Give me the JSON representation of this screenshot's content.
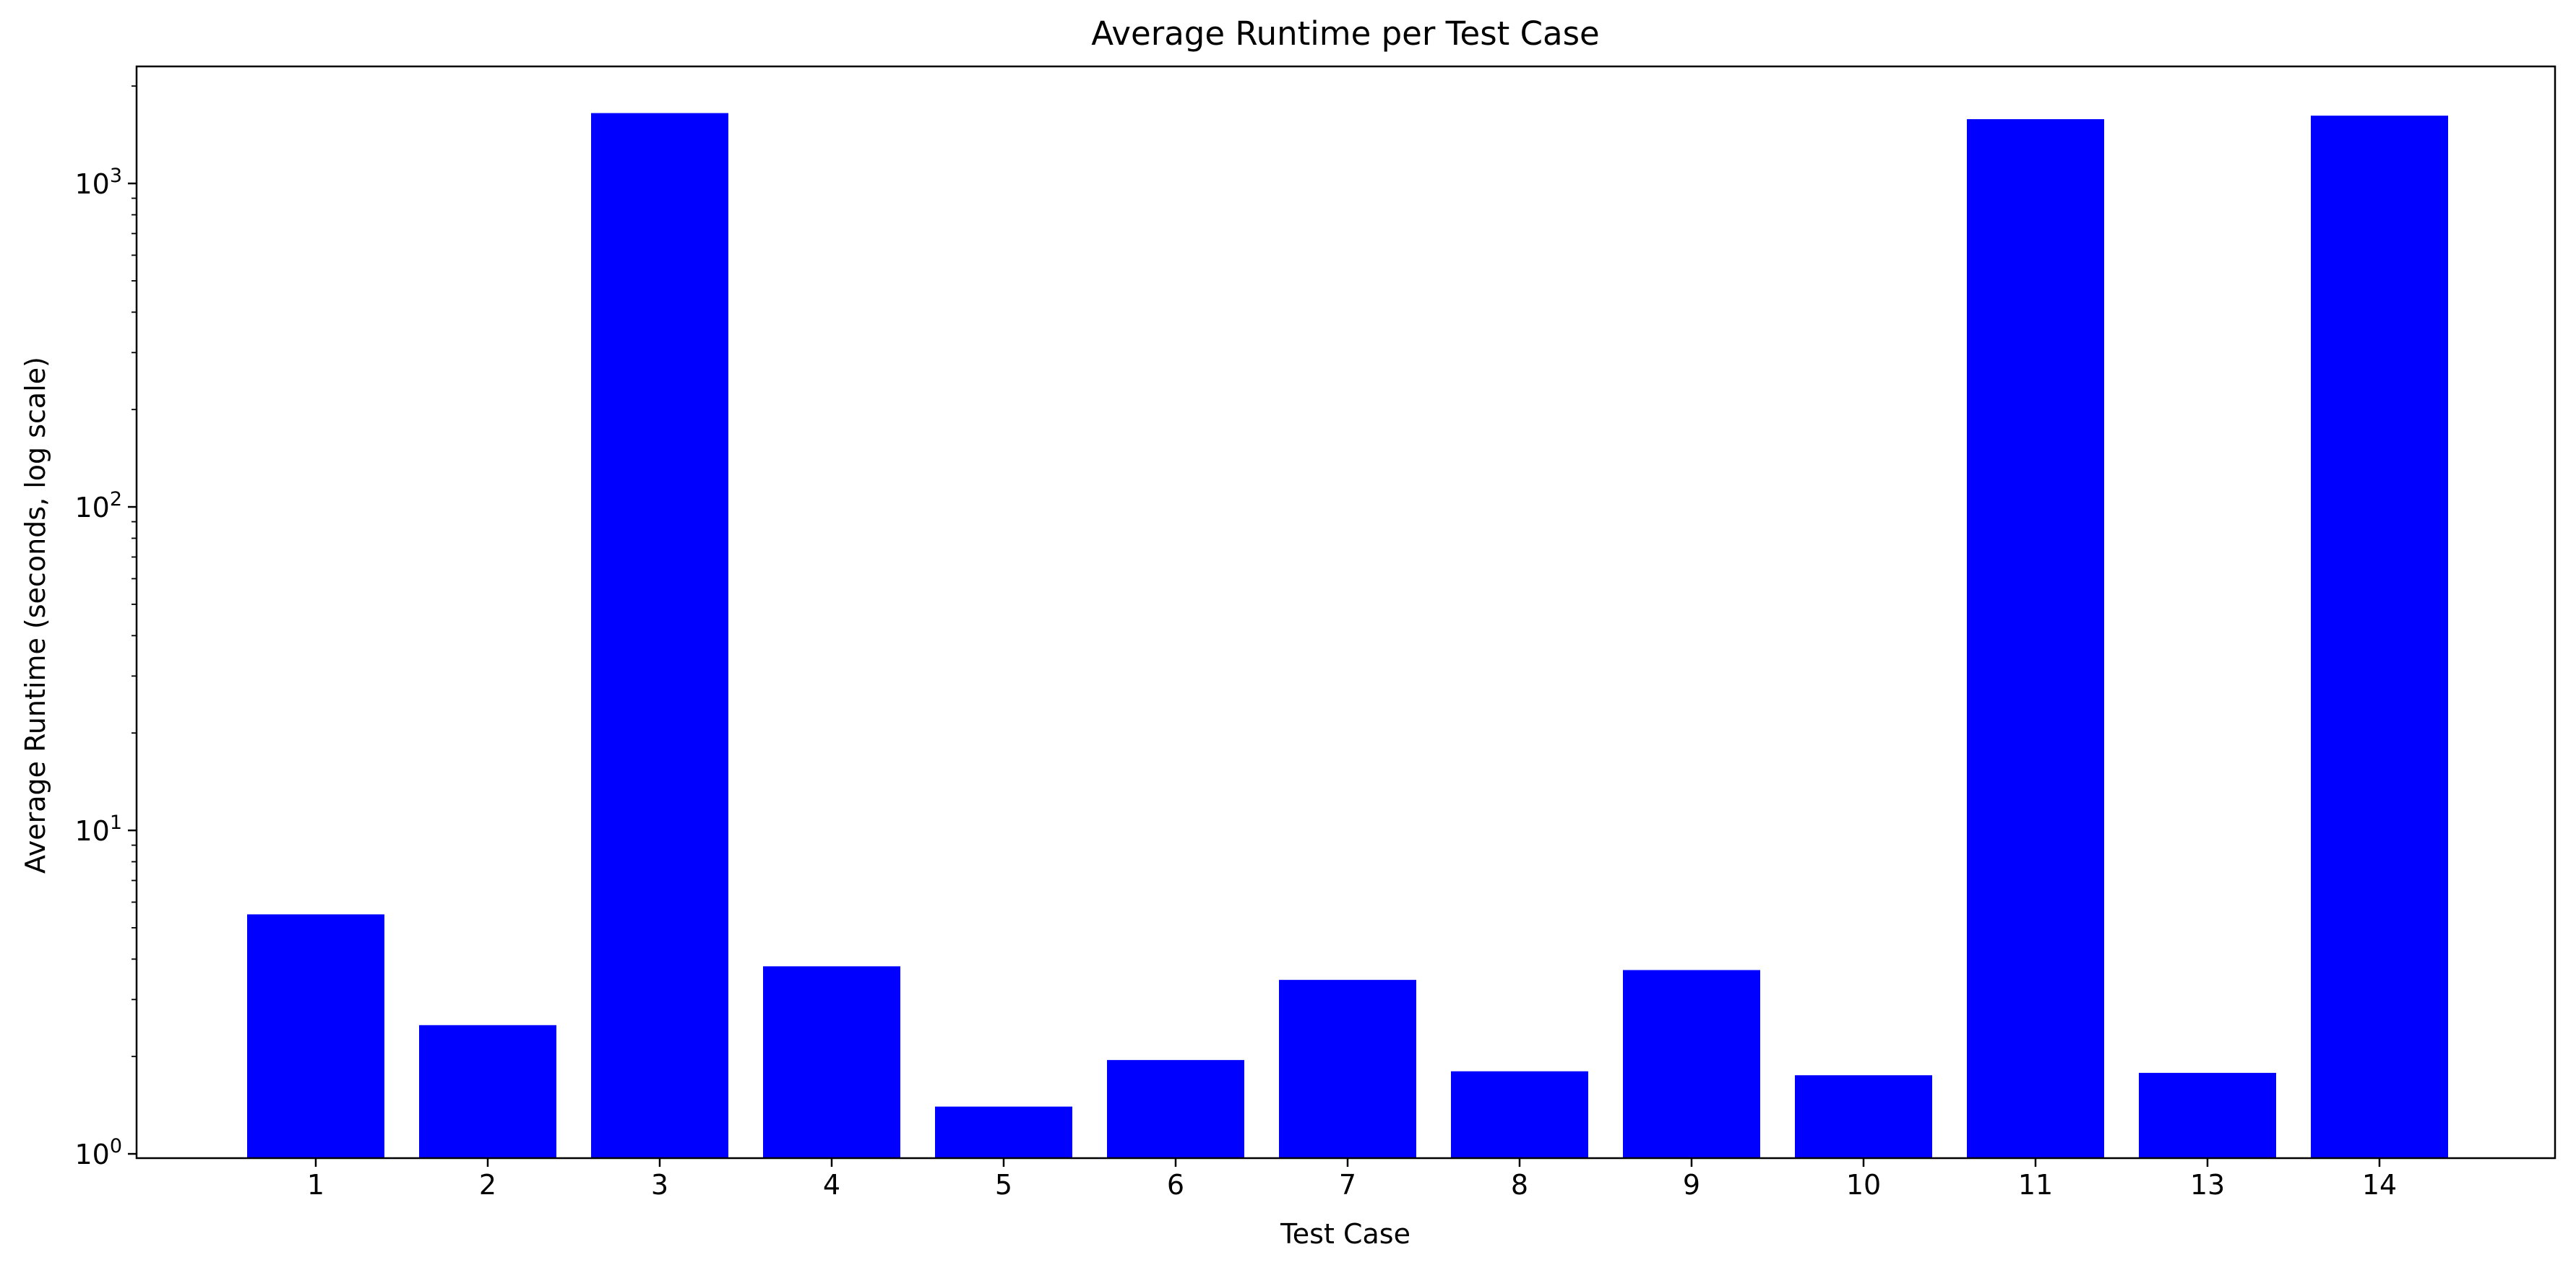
{
  "chart_data": {
    "type": "bar",
    "title": "Average Runtime per Test Case",
    "xlabel": "Test Case",
    "ylabel": "Average Runtime (seconds, log scale)",
    "yscale": "log",
    "ylim": [
      0.97,
      2300
    ],
    "yticks": [
      {
        "value": 1,
        "base": "10",
        "exp": "0"
      },
      {
        "value": 10,
        "base": "10",
        "exp": "1"
      },
      {
        "value": 100,
        "base": "10",
        "exp": "2"
      },
      {
        "value": 1000,
        "base": "10",
        "exp": "3"
      }
    ],
    "categories": [
      "1",
      "2",
      "3",
      "4",
      "5",
      "6",
      "7",
      "8",
      "9",
      "10",
      "11",
      "13",
      "14"
    ],
    "values": [
      5.5,
      2.5,
      1650,
      3.8,
      1.4,
      1.95,
      3.45,
      1.8,
      3.7,
      1.75,
      1580,
      1.78,
      1620
    ],
    "bar_color": "#0000ff",
    "grid": false,
    "legend": "none"
  }
}
